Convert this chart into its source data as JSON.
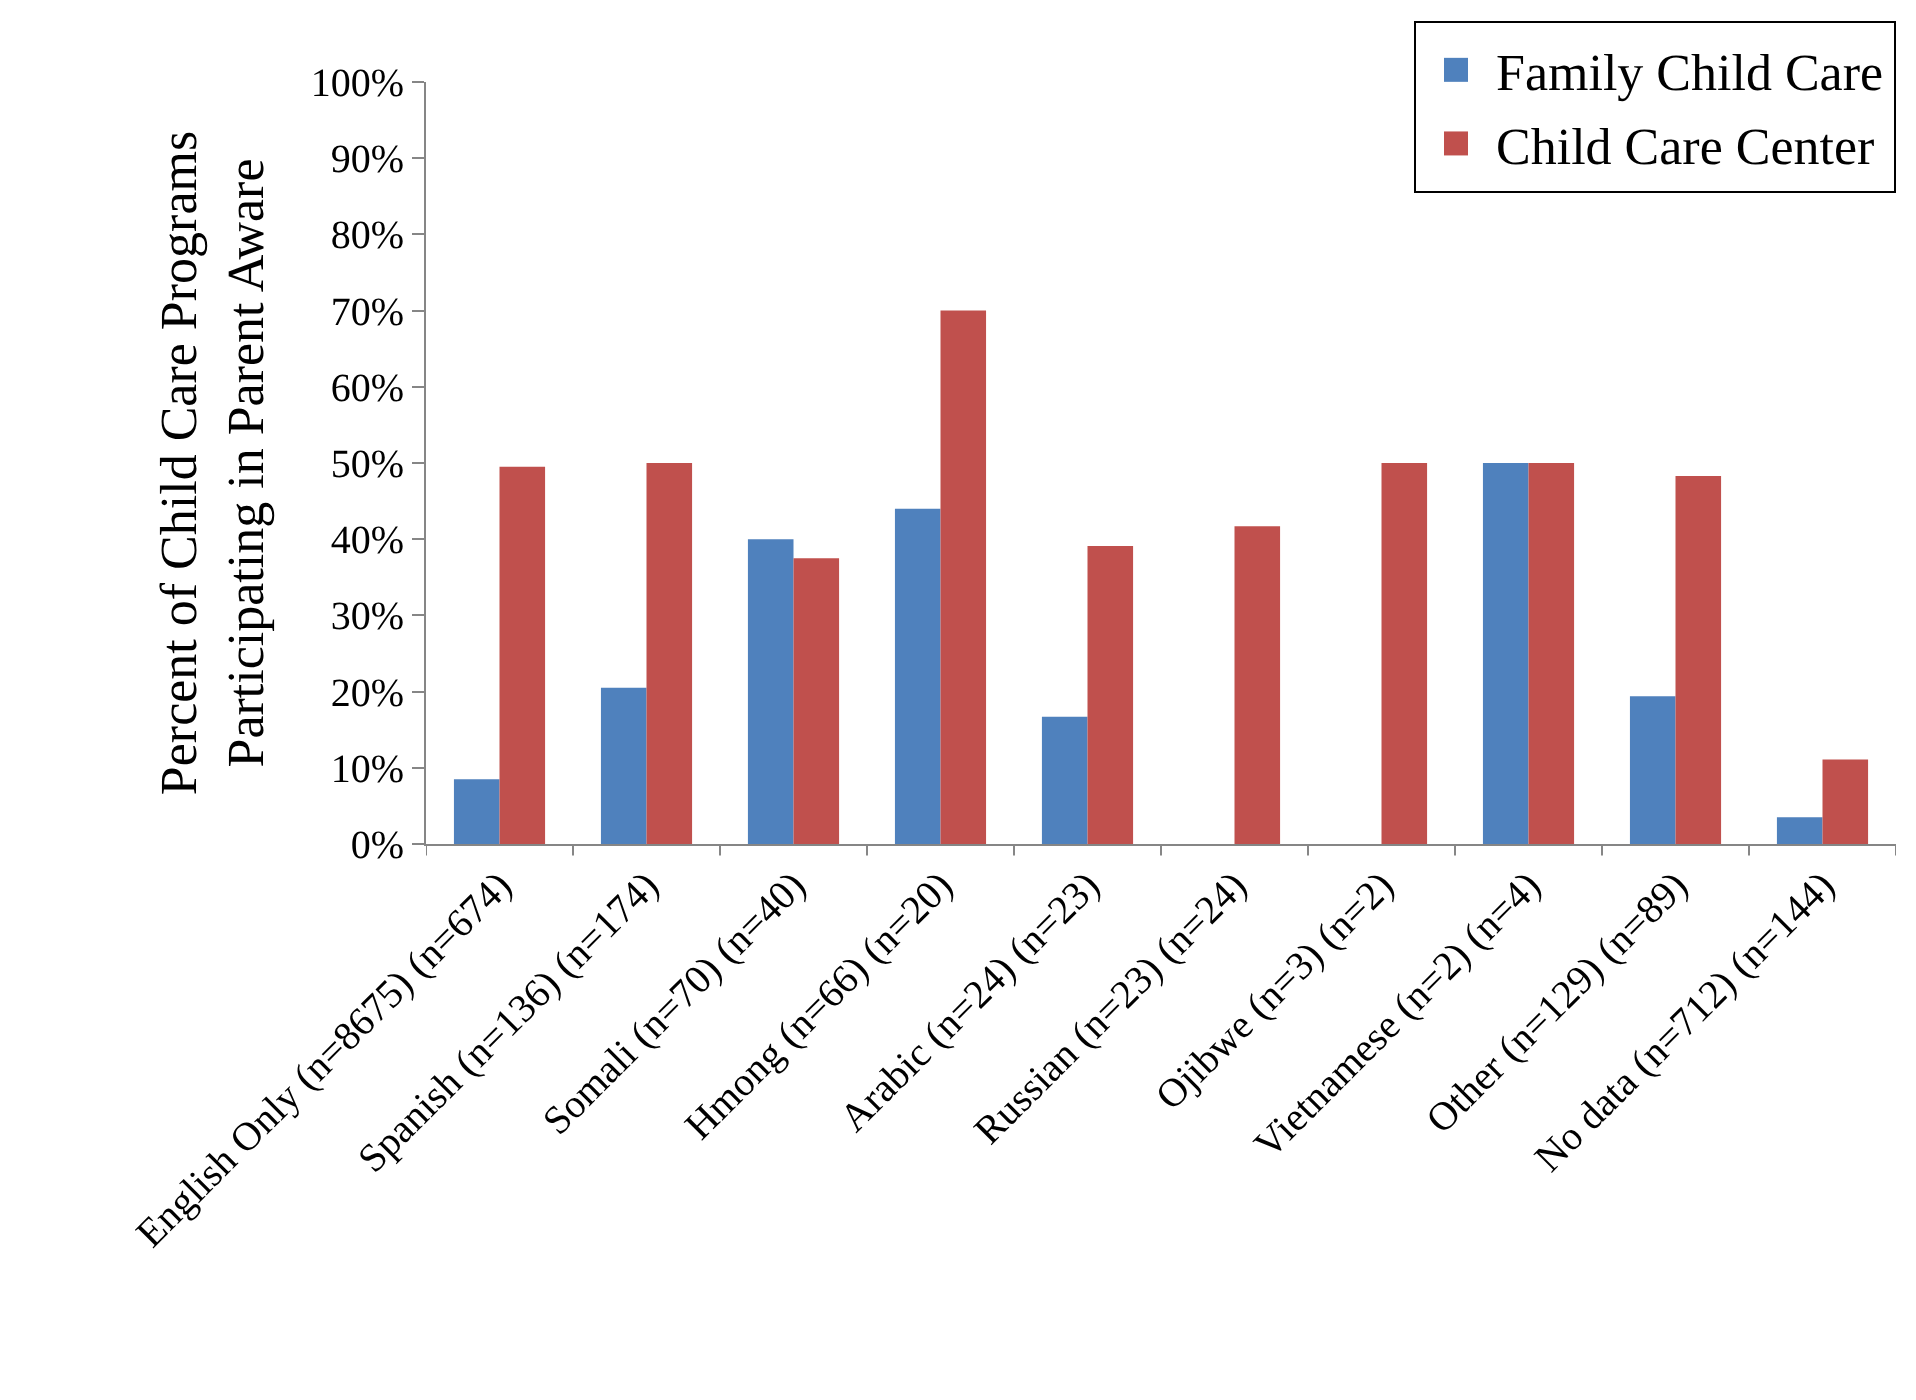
{
  "chart_data": {
    "type": "bar",
    "ylabel": "Percent of Child Care Programs Participating in Parent Aware",
    "categories": [
      "English Only (n=8675) (n=674)",
      "Spanish (n=136) (n=174)",
      "Somali (n=70) (n=40)",
      "Hmong (n=66) (n=20)",
      "Arabic (n=24) (n=23)",
      "Russian (n=23) (n=24)",
      "Ojibwe (n=3) (n=2)",
      "Vietnamese (n=2) (n=4)",
      "Other (n=129) (n=89)",
      "No data (n=712) (n=144)"
    ],
    "series": [
      {
        "name": "Family Child Care",
        "color": "#4f81bd",
        "values": [
          8.5,
          20.5,
          40,
          44,
          16.7,
          0,
          0,
          50,
          19.4,
          3.5
        ]
      },
      {
        "name": "Child Care Center",
        "color": "#c0504d",
        "values": [
          49.5,
          50,
          37.5,
          70,
          39.1,
          41.7,
          50,
          50,
          48.3,
          11.1
        ]
      }
    ],
    "ylim": [
      0,
      100
    ],
    "yticks": [
      {
        "value": 0,
        "label": "0%"
      },
      {
        "value": 10,
        "label": "10%"
      },
      {
        "value": 20,
        "label": "20%"
      },
      {
        "value": 30,
        "label": "30%"
      },
      {
        "value": 40,
        "label": "40%"
      },
      {
        "value": 50,
        "label": "50%"
      },
      {
        "value": 60,
        "label": "60%"
      },
      {
        "value": 70,
        "label": "70%"
      },
      {
        "value": 80,
        "label": "80%"
      },
      {
        "value": 90,
        "label": "90%"
      },
      {
        "value": 100,
        "label": "100%"
      }
    ],
    "grid": false,
    "legend": "top right"
  }
}
